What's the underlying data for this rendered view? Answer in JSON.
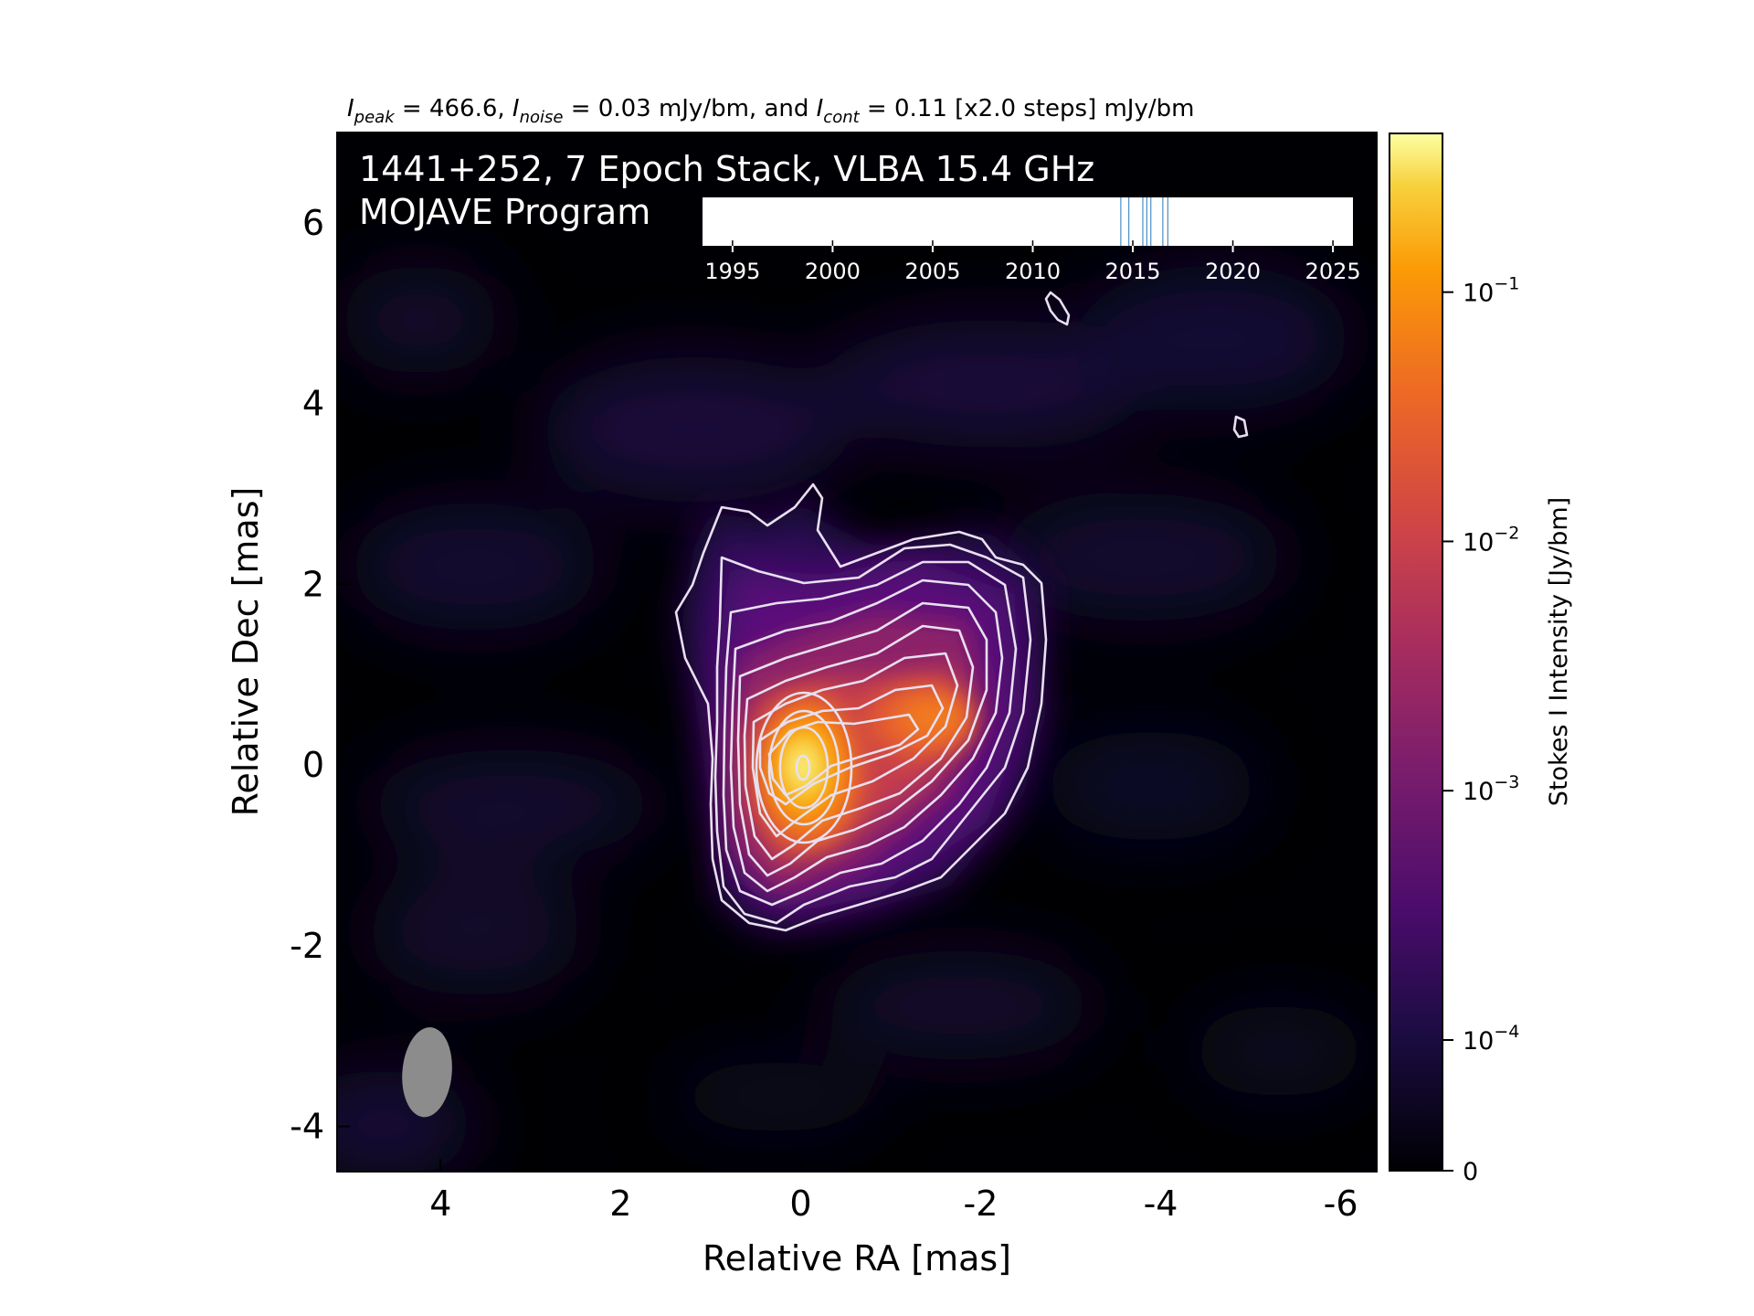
{
  "header": {
    "peak_symbol": "I",
    "peak_sub": "peak",
    "peak_text": " = 466.6, ",
    "noise_symbol": "I",
    "noise_sub": "noise",
    "noise_text": " = 0.03 mJy/bm, and ",
    "cont_symbol": "I",
    "cont_sub": "cont",
    "cont_text": " = 0.11 [x2.0 steps] mJy/bm"
  },
  "overlay": {
    "title_line1": "1441+252, 7 Epoch Stack, VLBA 15.4 GHz",
    "title_line2": "MOJAVE Program"
  },
  "chart_data": {
    "type": "heatmap",
    "xlabel": "Relative RA [mas]",
    "ylabel": "Relative Dec [mas]",
    "xlim": [
      5.15,
      -6.4
    ],
    "ylim": [
      -4.5,
      7.0
    ],
    "xticks": [
      4,
      2,
      0,
      -2,
      -4,
      -6
    ],
    "xtick_labels": [
      "4",
      "2",
      "0",
      "-2",
      "-4",
      "-6"
    ],
    "yticks": [
      -4,
      -2,
      0,
      2,
      4,
      6
    ],
    "ytick_labels": [
      "-4",
      "-2",
      "0",
      "2",
      "4",
      "6"
    ],
    "colormap": "inferno",
    "contour_color": "#e8e0f0",
    "peak_position": [
      0,
      0
    ],
    "secondary_component": [
      -1.4,
      0.55
    ],
    "beam": {
      "ra": 4.15,
      "dec": -3.4,
      "major_mas": 1.0,
      "minor_mas": 0.55,
      "pa_deg": -5,
      "color": "#8c8c8c"
    },
    "colorbar": {
      "label": "Stokes I Intensity [Jy/bm]",
      "scale": "symlog",
      "ticks": [
        0,
        0.0001,
        0.001,
        0.01,
        0.1
      ],
      "tick_labels": [
        {
          "base": "0",
          "exp": ""
        },
        {
          "base": "10",
          "exp": "−4"
        },
        {
          "base": "10",
          "exp": "−3"
        },
        {
          "base": "10",
          "exp": "−2"
        },
        {
          "base": "10",
          "exp": "−1"
        }
      ]
    },
    "epoch_timeline": {
      "xlim": [
        1993.5,
        2026
      ],
      "ticks": [
        1995,
        2000,
        2005,
        2010,
        2015,
        2020,
        2025
      ],
      "tick_labels": [
        "1995",
        "2000",
        "2005",
        "2010",
        "2015",
        "2020",
        "2025"
      ],
      "epochs": [
        2014.4,
        2014.8,
        2015.5,
        2015.7,
        2015.9,
        2016.5,
        2016.75
      ],
      "line_color": "#4a8fc7"
    }
  }
}
